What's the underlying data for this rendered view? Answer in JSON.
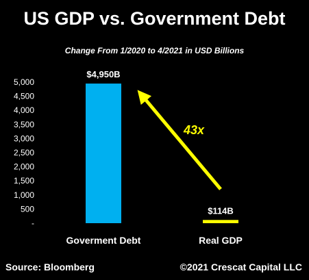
{
  "header": {
    "title": "US GDP vs. Government Debt",
    "subtitle": "Change From 1/2020 to 4/2021 in USD Billions"
  },
  "footer": {
    "source": "Source: Bloomberg",
    "copyright": "©2021 Crescat Capital LLC"
  },
  "chart_data": {
    "type": "bar",
    "title": "US GDP vs. Government Debt",
    "subtitle": "Change From 1/2020 to 4/2021 in USD Billions",
    "categories": [
      "Goverment Debt",
      "Real GDP"
    ],
    "values": [
      4950,
      114
    ],
    "data_labels": [
      "$4,950B",
      "$114B"
    ],
    "bar_colors": [
      "#00b0f0",
      "#ffff00"
    ],
    "ylim": [
      0,
      5000
    ],
    "yticks": [
      0,
      500,
      1000,
      1500,
      2000,
      2500,
      3000,
      3500,
      4000,
      4500,
      5000
    ],
    "ytick_labels": [
      "-",
      "500",
      "1,000",
      "1,500",
      "2,000",
      "2,500",
      "3,000",
      "3,500",
      "4,000",
      "4,500",
      "5,000"
    ],
    "grid": false,
    "legend": "none",
    "annotation": {
      "text": "43x",
      "color": "#ffff00",
      "arrow": "from Real GDP bar up to Goverment Debt bar"
    }
  }
}
